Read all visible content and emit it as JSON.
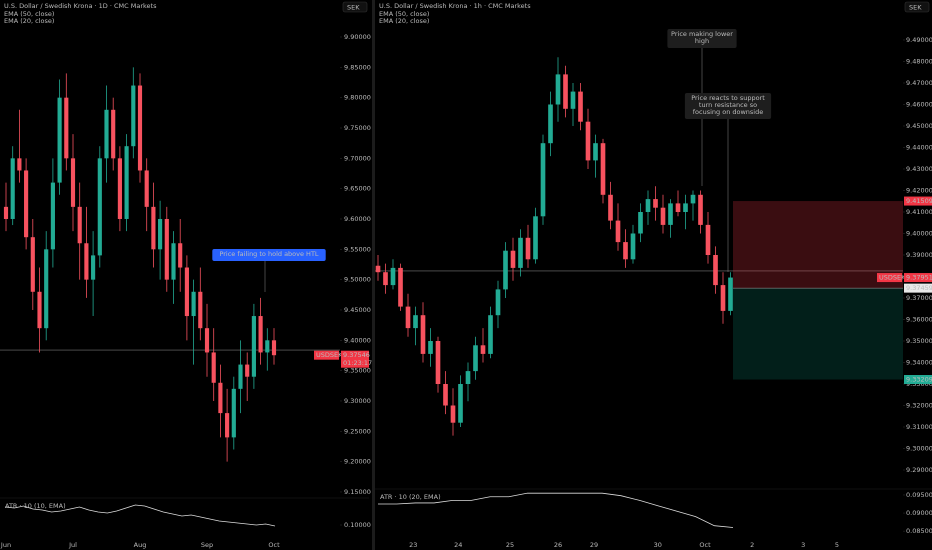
{
  "chart_data": [
    {
      "type": "candlestick",
      "title": "U.S. Dollar / Swedish Krona · 1D · CMC Markets",
      "ema_labels": [
        "EMA (50, close)",
        "EMA (20, close)"
      ],
      "currency": "SEK",
      "up_color": "#22ab94",
      "down_color": "#f7525f",
      "open": [
        9.62,
        9.6,
        9.7,
        9.68,
        9.57,
        9.48,
        9.42,
        9.55,
        9.66,
        9.8,
        9.7,
        9.62,
        9.56,
        9.5,
        9.54,
        9.7,
        9.78,
        9.7,
        9.6,
        9.72,
        9.82,
        9.68,
        9.62,
        9.55,
        9.6,
        9.5,
        9.56,
        9.52,
        9.44,
        9.48,
        9.42,
        9.38,
        9.33,
        9.28,
        9.24,
        9.32,
        9.36,
        9.34,
        9.44,
        9.38,
        9.4
      ],
      "high": [
        9.66,
        9.72,
        9.78,
        9.7,
        9.6,
        9.52,
        9.58,
        9.7,
        9.83,
        9.84,
        9.74,
        9.66,
        9.62,
        9.58,
        9.72,
        9.82,
        9.8,
        9.72,
        9.74,
        9.85,
        9.84,
        9.7,
        9.66,
        9.63,
        9.62,
        9.58,
        9.6,
        9.54,
        9.5,
        9.52,
        9.46,
        9.42,
        9.36,
        9.32,
        9.34,
        9.4,
        9.38,
        9.46,
        9.47,
        9.42,
        9.42
      ],
      "low": [
        9.58,
        9.59,
        9.66,
        9.55,
        9.45,
        9.38,
        9.4,
        9.52,
        9.64,
        9.68,
        9.58,
        9.5,
        9.47,
        9.44,
        9.52,
        9.66,
        9.68,
        9.58,
        9.58,
        9.7,
        9.66,
        9.58,
        9.52,
        9.5,
        9.48,
        9.46,
        9.48,
        9.4,
        9.36,
        9.4,
        9.34,
        9.3,
        9.24,
        9.2,
        9.22,
        9.28,
        9.3,
        9.32,
        9.36,
        9.35,
        9.36
      ],
      "close": [
        9.6,
        9.7,
        9.68,
        9.57,
        9.48,
        9.42,
        9.55,
        9.66,
        9.8,
        9.7,
        9.62,
        9.56,
        9.5,
        9.54,
        9.7,
        9.78,
        9.7,
        9.6,
        9.72,
        9.82,
        9.68,
        9.62,
        9.55,
        9.6,
        9.5,
        9.56,
        9.52,
        9.44,
        9.48,
        9.42,
        9.38,
        9.33,
        9.28,
        9.24,
        9.32,
        9.36,
        9.34,
        9.44,
        9.38,
        9.4,
        9.37546
      ],
      "ylim": [
        9.145,
        9.961
      ],
      "yticks": [
        {
          "value": 9.15,
          "label": "9.15000"
        },
        {
          "value": 9.2,
          "label": "9.20000"
        },
        {
          "value": 9.25,
          "label": "9.25000"
        },
        {
          "value": 9.3,
          "label": "9.30000"
        },
        {
          "value": 9.35,
          "label": "9.35000"
        },
        {
          "value": 9.4,
          "label": "9.40000"
        },
        {
          "value": 9.45,
          "label": "9.45000"
        },
        {
          "value": 9.5,
          "label": "9.50000"
        },
        {
          "value": 9.55,
          "label": "9.55000"
        },
        {
          "value": 9.6,
          "label": "9.60000"
        },
        {
          "value": 9.65,
          "label": "9.65000"
        },
        {
          "value": 9.7,
          "label": "9.70000"
        },
        {
          "value": 9.75,
          "label": "9.75000"
        },
        {
          "value": 9.8,
          "label": "9.80000"
        },
        {
          "value": 9.85,
          "label": "9.85000"
        },
        {
          "value": 9.9,
          "label": "9.90000"
        }
      ],
      "xticks": [
        {
          "value": 0,
          "label": "Jun"
        },
        {
          "value": 10,
          "label": "Jul"
        },
        {
          "value": 20,
          "label": "Aug"
        },
        {
          "value": 30,
          "label": "Sep"
        },
        {
          "value": 40,
          "label": "Oct"
        }
      ],
      "level": 9.384,
      "symbol": "USDSEK",
      "last_price": 9.37546,
      "countdown": "01:23:17",
      "annotations": [
        {
          "lines": [
            "Price failing to hold above HTL"
          ]
        }
      ],
      "atr": {
        "label": "ATR · 10 (10, EMA)",
        "values": [
          0.118,
          0.117,
          0.119,
          0.116,
          0.115,
          0.113,
          0.114,
          0.116,
          0.118,
          0.115,
          0.113,
          0.112,
          0.114,
          0.117,
          0.12,
          0.119,
          0.116,
          0.113,
          0.111,
          0.109,
          0.11,
          0.108,
          0.106,
          0.104,
          0.103,
          0.102,
          0.101,
          0.1,
          0.101,
          0.099
        ],
        "ylim": [
          0.085,
          0.125
        ],
        "yticks": [
          {
            "value": 0.1,
            "label": "0.10000"
          }
        ]
      }
    },
    {
      "type": "candlestick",
      "title": "U.S. Dollar / Swedish Krona · 1h · CMC Markets",
      "ema_labels": [
        "EMA (50, close)",
        "EMA (20, close)"
      ],
      "currency": "SEK",
      "up_color": "#22ab94",
      "down_color": "#f7525f",
      "open": [
        9.385,
        9.382,
        9.376,
        9.384,
        9.366,
        9.356,
        9.362,
        9.344,
        9.35,
        9.33,
        9.32,
        9.312,
        9.33,
        9.336,
        9.348,
        9.344,
        9.362,
        9.374,
        9.392,
        9.384,
        9.398,
        9.388,
        9.408,
        9.442,
        9.46,
        9.474,
        9.458,
        9.466,
        9.452,
        9.434,
        9.442,
        9.418,
        9.406,
        9.396,
        9.388,
        9.4,
        9.41,
        9.416,
        9.412,
        9.404,
        9.414,
        9.41,
        9.414,
        9.418,
        9.404,
        9.39,
        9.376,
        9.364
      ],
      "high": [
        9.39,
        9.386,
        9.388,
        9.386,
        9.372,
        9.366,
        9.368,
        9.356,
        9.352,
        9.336,
        9.328,
        9.334,
        9.34,
        9.352,
        9.356,
        9.366,
        9.378,
        9.396,
        9.398,
        9.402,
        9.404,
        9.412,
        9.446,
        9.466,
        9.482,
        9.478,
        9.47,
        9.47,
        9.458,
        9.446,
        9.444,
        9.424,
        9.414,
        9.402,
        9.404,
        9.414,
        9.42,
        9.422,
        9.418,
        9.416,
        9.42,
        9.418,
        9.42,
        9.42,
        9.41,
        9.394,
        9.382,
        9.382
      ],
      "low": [
        9.378,
        9.372,
        9.374,
        9.364,
        9.352,
        9.348,
        9.34,
        9.338,
        9.326,
        9.316,
        9.306,
        9.31,
        9.322,
        9.332,
        9.34,
        9.342,
        9.356,
        9.37,
        9.378,
        9.38,
        9.384,
        9.386,
        9.404,
        9.436,
        9.452,
        9.454,
        9.45,
        9.448,
        9.43,
        9.426,
        9.414,
        9.402,
        9.392,
        9.384,
        9.386,
        9.396,
        9.404,
        9.406,
        9.4,
        9.398,
        9.408,
        9.402,
        9.406,
        9.4,
        9.386,
        9.372,
        9.358,
        9.362
      ],
      "close": [
        9.382,
        9.376,
        9.384,
        9.366,
        9.356,
        9.362,
        9.344,
        9.35,
        9.33,
        9.32,
        9.312,
        9.33,
        9.336,
        9.348,
        9.344,
        9.362,
        9.374,
        9.392,
        9.384,
        9.398,
        9.388,
        9.408,
        9.442,
        9.46,
        9.474,
        9.458,
        9.466,
        9.452,
        9.434,
        9.442,
        9.418,
        9.406,
        9.396,
        9.388,
        9.4,
        9.41,
        9.416,
        9.412,
        9.404,
        9.414,
        9.41,
        9.414,
        9.418,
        9.404,
        9.39,
        9.376,
        9.364,
        9.37951
      ],
      "ylim": [
        9.2807,
        9.5086
      ],
      "yticks": [
        {
          "value": 9.29,
          "label": "9.29000"
        },
        {
          "value": 9.3,
          "label": "9.30000"
        },
        {
          "value": 9.31,
          "label": "9.31000"
        },
        {
          "value": 9.32,
          "label": "9.32000"
        },
        {
          "value": 9.33,
          "label": "9.33000"
        },
        {
          "value": 9.34,
          "label": "9.34000"
        },
        {
          "value": 9.35,
          "label": "9.35000"
        },
        {
          "value": 9.36,
          "label": "9.36000"
        },
        {
          "value": 9.37,
          "label": "9.37000"
        },
        {
          "value": 9.38,
          "label": "9.38000"
        },
        {
          "value": 9.39,
          "label": "9.39000"
        },
        {
          "value": 9.4,
          "label": "9.40000"
        },
        {
          "value": 9.41,
          "label": "9.41000"
        },
        {
          "value": 9.42,
          "label": "9.42000"
        },
        {
          "value": 9.43,
          "label": "9.43000"
        },
        {
          "value": 9.44,
          "label": "9.44000"
        },
        {
          "value": 9.45,
          "label": "9.45000"
        },
        {
          "value": 9.46,
          "label": "9.46000"
        },
        {
          "value": 9.47,
          "label": "9.47000"
        },
        {
          "value": 9.48,
          "label": "9.48000"
        },
        {
          "value": 9.49,
          "label": "9.49000"
        }
      ],
      "xticks": [
        {
          "value": 4.7,
          "label": "23"
        },
        {
          "value": 10.7,
          "label": "24"
        },
        {
          "value": 17.6,
          "label": "25"
        },
        {
          "value": 24,
          "label": "26"
        },
        {
          "value": 28.8,
          "label": "29"
        },
        {
          "value": 37.3,
          "label": "30"
        },
        {
          "value": 43.6,
          "label": "Oct"
        },
        {
          "value": 49.9,
          "label": "2"
        },
        {
          "value": 56.7,
          "label": "3"
        },
        {
          "value": 61.2,
          "label": "5"
        }
      ],
      "level": 9.3826,
      "symbol": "USDSEK",
      "last_price": 9.37951,
      "position": {
        "stop": 9.41509,
        "entry": 9.37459,
        "target": 9.33209
      },
      "annotations": [
        {
          "lines": [
            "Price making lower",
            "high"
          ]
        },
        {
          "lines": [
            "Price reacts to support",
            "turn resistance so",
            "focusing on downside"
          ]
        }
      ],
      "atr": {
        "label": "ATR · 10 (20, EMA)",
        "values": [
          0.0925,
          0.0925,
          0.0928,
          0.0928,
          0.0935,
          0.0935,
          0.0945,
          0.0945,
          0.0955,
          0.0955,
          0.0955,
          0.0955,
          0.0955,
          0.0948,
          0.0935,
          0.092,
          0.0905,
          0.089,
          0.0865,
          0.086
        ],
        "ylim": [
          0.0831,
          0.0961
        ],
        "yticks": [
          {
            "value": 0.095,
            "label": "0.09500"
          },
          {
            "value": 0.09,
            "label": "0.09000"
          },
          {
            "value": 0.085,
            "label": "0.08500"
          }
        ]
      }
    }
  ]
}
